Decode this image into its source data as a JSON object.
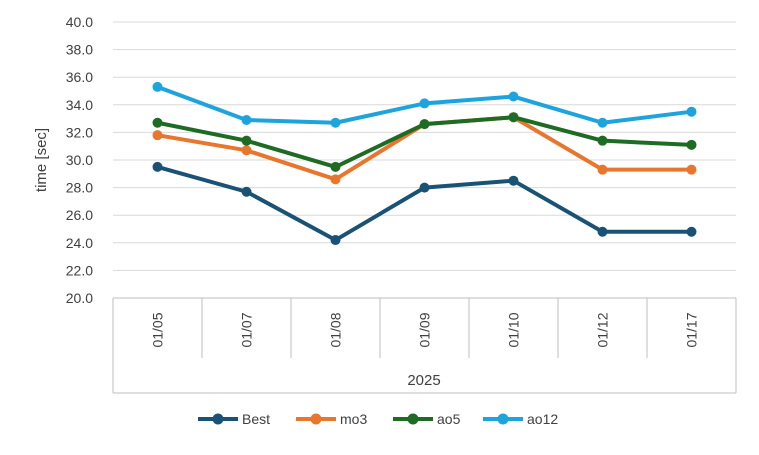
{
  "chart_data": {
    "type": "line",
    "title": "",
    "xlabel": "",
    "ylabel": "time [sec]",
    "ylim": [
      20,
      40
    ],
    "y_step": 2,
    "y_tick_decimals": 1,
    "grid": true,
    "categories": [
      "01/05",
      "01/07",
      "01/08",
      "01/09",
      "01/10",
      "01/12",
      "01/17"
    ],
    "category_group": "2025",
    "legend_position": "bottom",
    "series": [
      {
        "name": "Best",
        "color": "#1a5276",
        "values": [
          29.5,
          27.7,
          24.2,
          28.0,
          28.5,
          24.8,
          24.8
        ]
      },
      {
        "name": "mo3",
        "color": "#e8762c",
        "values": [
          31.8,
          30.7,
          28.6,
          32.6,
          33.1,
          29.3,
          29.3
        ]
      },
      {
        "name": "ao5",
        "color": "#1e6b23",
        "values": [
          32.7,
          31.4,
          29.5,
          32.6,
          33.1,
          31.4,
          31.1
        ]
      },
      {
        "name": "ao12",
        "color": "#1ea4dd",
        "values": [
          35.3,
          32.9,
          32.7,
          34.1,
          34.6,
          32.7,
          33.5
        ]
      }
    ]
  }
}
